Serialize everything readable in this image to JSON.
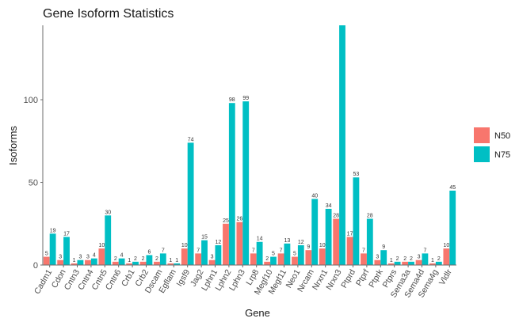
{
  "chart_data": {
    "type": "bar",
    "title": "Gene Isoform Statistics",
    "xlabel": "Gene",
    "ylabel": "Isoforms",
    "ylim": [
      0,
      145
    ],
    "yticks": [
      0,
      50,
      100
    ],
    "grid": false,
    "legend_position": "right",
    "categories": [
      "Cadm1",
      "Cdon",
      "Cntn3",
      "Cntn4",
      "Cntn5",
      "Cntn6",
      "Crb1",
      "Crb2",
      "Dscam",
      "Egflam",
      "Igsf9",
      "Jag2",
      "Lphn1",
      "Lphn2",
      "Lphn3",
      "Lrp8",
      "Megf10",
      "Megf11",
      "Neo1",
      "Nrcam",
      "Nrxn1",
      "Nrxn3",
      "Ptprd",
      "Ptprf",
      "Ptprk",
      "Ptprs",
      "Sema3a",
      "Sema4d",
      "Sema4g",
      "Vldlr"
    ],
    "series": [
      {
        "name": "N50",
        "color": "#F8766D",
        "values": [
          5,
          3,
          1,
          3,
          10,
          2,
          1,
          2,
          2,
          1,
          10,
          7,
          3,
          25,
          26,
          7,
          2,
          7,
          5,
          9,
          10,
          28,
          17,
          7,
          3,
          1,
          2,
          3,
          1,
          10
        ]
      },
      {
        "name": "N75",
        "color": "#00BFC4",
        "values": [
          19,
          17,
          3,
          4,
          30,
          4,
          2,
          6,
          7,
          1,
          74,
          15,
          12,
          98,
          99,
          14,
          5,
          13,
          12,
          40,
          34,
          145,
          53,
          28,
          9,
          2,
          2,
          7,
          2,
          45
        ]
      }
    ],
    "value_labels": {
      "N50": [
        "5",
        "3",
        "1",
        "3",
        "10",
        "2",
        "1",
        "2",
        "2",
        "1",
        "10",
        "7",
        "3",
        "25",
        "26",
        "7",
        "2",
        "7",
        "5",
        "9",
        "10",
        "28",
        "17",
        "7",
        "3",
        "1",
        "2",
        "3",
        "1",
        "10"
      ],
      "N75": [
        "19",
        "17",
        "3",
        "4",
        "30",
        "4",
        "2",
        "6",
        "7",
        "1",
        "74",
        "15",
        "12",
        "98",
        "99",
        "14",
        "5",
        "13",
        "12",
        "40",
        "34",
        "",
        "53",
        "28",
        "9",
        "2",
        "2",
        "7",
        "2",
        "45"
      ]
    }
  }
}
